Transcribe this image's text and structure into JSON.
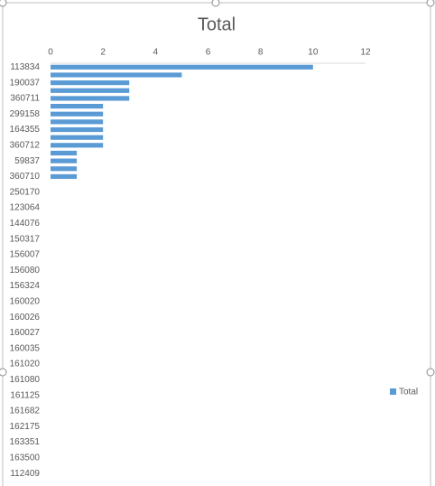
{
  "chart_data": {
    "type": "bar",
    "orientation": "horizontal",
    "title": "Total",
    "categories": [
      "113834",
      null,
      "190037",
      null,
      "360711",
      null,
      "299158",
      null,
      "164355",
      null,
      "360712",
      null,
      "59837",
      null,
      "360710",
      null,
      "250170",
      null,
      "123064",
      null,
      "144076",
      null,
      "150317",
      null,
      "156007",
      null,
      "156080",
      null,
      "156324",
      null,
      "160020",
      null,
      "160026",
      null,
      "160027",
      null,
      "160035",
      null,
      "161020",
      null,
      "161080",
      null,
      "161125",
      null,
      "161682",
      null,
      "162175",
      null,
      "163351",
      null,
      "163500",
      null,
      "112409"
    ],
    "series": [
      {
        "name": "Total",
        "color": "#5b9bd5",
        "values": [
          10,
          5,
          3,
          3,
          3,
          2,
          2,
          2,
          2,
          2,
          2,
          1,
          1,
          1,
          1,
          null,
          null,
          null,
          null,
          null,
          null,
          null,
          null,
          null,
          null,
          null,
          null,
          null,
          null,
          null,
          null,
          null,
          null,
          null,
          null,
          null,
          null,
          null,
          null,
          null,
          null,
          null,
          null,
          null,
          null,
          null,
          null,
          null,
          null,
          null,
          null,
          null,
          null
        ]
      }
    ],
    "xlim": [
      0,
      12
    ],
    "xticks": [
      0,
      2,
      4,
      6,
      8,
      10,
      12
    ],
    "legend": "right"
  }
}
